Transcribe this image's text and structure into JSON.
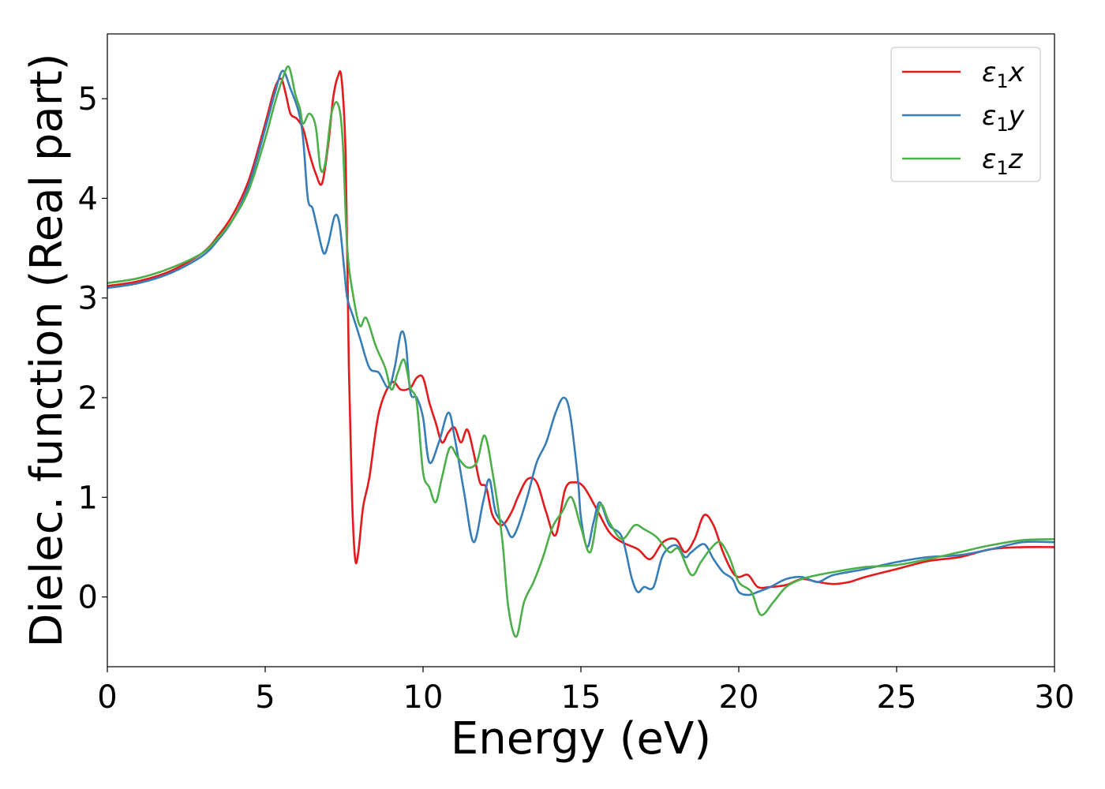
{
  "chart_data": {
    "type": "line",
    "xlabel": "Energy (eV)",
    "ylabel": "Dielec. function (Real part)",
    "xlim": [
      0,
      30
    ],
    "ylim": [
      -0.7,
      5.65
    ],
    "xticks": [
      0,
      5,
      10,
      15,
      20,
      25,
      30
    ],
    "yticks": [
      0,
      1,
      2,
      3,
      4,
      5
    ],
    "grid": false,
    "legend_position": "top-right",
    "series": [
      {
        "name_symbol": "ε",
        "name_sub": "1",
        "name_var": "x",
        "color": "#e41a1c",
        "x": [
          0,
          1,
          2,
          3,
          3.5,
          4,
          4.5,
          5,
          5.3,
          5.5,
          5.65,
          5.8,
          6.0,
          6.2,
          6.4,
          6.6,
          6.8,
          7.0,
          7.15,
          7.3,
          7.42,
          7.55,
          7.65,
          7.75,
          7.85,
          7.95,
          8.1,
          8.3,
          8.6,
          9.0,
          9.3,
          9.6,
          9.8,
          10.0,
          10.2,
          10.4,
          10.6,
          10.8,
          11.0,
          11.2,
          11.4,
          11.6,
          11.8,
          12.0,
          12.2,
          12.5,
          12.8,
          13.0,
          13.3,
          13.6,
          13.9,
          14.2,
          14.5,
          14.8,
          15.1,
          15.5,
          15.9,
          16.3,
          16.8,
          17.2,
          17.6,
          18.0,
          18.3,
          18.6,
          18.9,
          19.2,
          19.5,
          19.8,
          20.0,
          20.3,
          20.6,
          21.0,
          21.5,
          22.0,
          22.5,
          23.0,
          23.5,
          24.0,
          25.0,
          26.0,
          27.0,
          28.0,
          29.0,
          30.0
        ],
        "y": [
          3.12,
          3.17,
          3.27,
          3.45,
          3.62,
          3.85,
          4.2,
          4.75,
          5.1,
          5.2,
          5.05,
          4.85,
          4.8,
          4.7,
          4.45,
          4.25,
          4.15,
          4.55,
          5.0,
          5.22,
          5.2,
          4.4,
          2.3,
          1.0,
          0.38,
          0.45,
          0.9,
          1.2,
          1.85,
          2.15,
          2.08,
          2.1,
          2.2,
          2.2,
          1.95,
          1.75,
          1.55,
          1.65,
          1.7,
          1.55,
          1.68,
          1.45,
          1.15,
          1.1,
          0.82,
          0.72,
          0.85,
          1.0,
          1.18,
          1.15,
          0.85,
          0.62,
          1.08,
          1.15,
          1.1,
          0.88,
          0.65,
          0.55,
          0.48,
          0.38,
          0.55,
          0.58,
          0.45,
          0.58,
          0.82,
          0.72,
          0.45,
          0.25,
          0.2,
          0.22,
          0.1,
          0.1,
          0.12,
          0.18,
          0.15,
          0.13,
          0.15,
          0.2,
          0.28,
          0.36,
          0.4,
          0.48,
          0.5,
          0.5
        ]
      },
      {
        "name_symbol": "ε",
        "name_sub": "1",
        "name_var": "y",
        "color": "#377eb8",
        "x": [
          0,
          1,
          2,
          3,
          3.5,
          4,
          4.5,
          5,
          5.3,
          5.55,
          5.8,
          6.05,
          6.2,
          6.35,
          6.5,
          6.65,
          6.85,
          7.0,
          7.2,
          7.35,
          7.5,
          7.6,
          7.8,
          8.0,
          8.3,
          8.6,
          8.9,
          9.1,
          9.3,
          9.45,
          9.6,
          9.8,
          10.0,
          10.2,
          10.5,
          10.8,
          11.0,
          11.3,
          11.6,
          11.9,
          12.1,
          12.3,
          12.6,
          12.8,
          13.0,
          13.3,
          13.6,
          13.9,
          14.2,
          14.45,
          14.65,
          14.9,
          15.0,
          15.2,
          15.4,
          15.6,
          15.9,
          16.3,
          16.6,
          16.8,
          17.0,
          17.3,
          17.6,
          18.0,
          18.3,
          18.5,
          18.9,
          19.2,
          19.5,
          19.8,
          20.0,
          20.3,
          20.6,
          21.0,
          21.5,
          22.0,
          22.5,
          23.0,
          24.0,
          25.0,
          26.0,
          27.0,
          28.0,
          29.0,
          30.0
        ],
        "y": [
          3.1,
          3.15,
          3.25,
          3.42,
          3.58,
          3.8,
          4.15,
          4.7,
          5.05,
          5.28,
          5.1,
          4.88,
          4.6,
          4.0,
          3.9,
          3.7,
          3.45,
          3.55,
          3.82,
          3.75,
          3.3,
          3.0,
          2.8,
          2.6,
          2.3,
          2.25,
          2.1,
          2.3,
          2.65,
          2.55,
          2.05,
          2.0,
          1.8,
          1.35,
          1.55,
          1.85,
          1.6,
          1.05,
          0.55,
          0.95,
          1.18,
          0.85,
          0.72,
          0.6,
          0.7,
          1.0,
          1.35,
          1.55,
          1.85,
          2.0,
          1.85,
          1.2,
          0.8,
          0.5,
          0.75,
          0.95,
          0.72,
          0.6,
          0.2,
          0.05,
          0.1,
          0.1,
          0.42,
          0.52,
          0.4,
          0.45,
          0.53,
          0.38,
          0.25,
          0.18,
          0.05,
          0.02,
          0.05,
          0.1,
          0.18,
          0.2,
          0.15,
          0.22,
          0.28,
          0.35,
          0.4,
          0.42,
          0.48,
          0.55,
          0.55
        ]
      },
      {
        "name_symbol": "ε",
        "name_sub": "1",
        "name_var": "z",
        "color": "#4daf4a",
        "x": [
          0,
          1,
          2,
          3,
          3.5,
          4,
          4.5,
          5,
          5.3,
          5.55,
          5.75,
          5.95,
          6.1,
          6.2,
          6.4,
          6.6,
          6.75,
          6.9,
          7.1,
          7.3,
          7.45,
          7.6,
          7.8,
          8.0,
          8.2,
          8.5,
          8.8,
          9.0,
          9.2,
          9.4,
          9.6,
          9.8,
          10.0,
          10.2,
          10.4,
          10.6,
          10.85,
          11.1,
          11.4,
          11.7,
          11.95,
          12.2,
          12.5,
          12.7,
          12.95,
          13.2,
          13.5,
          13.8,
          14.1,
          14.4,
          14.7,
          15.0,
          15.3,
          15.6,
          15.9,
          16.3,
          16.7,
          17.0,
          17.4,
          17.8,
          18.1,
          18.5,
          18.8,
          19.1,
          19.4,
          19.7,
          20.0,
          20.4,
          20.7,
          21.1,
          21.5,
          22.0,
          22.5,
          23.0,
          24.0,
          25.0,
          26.0,
          27.0,
          28.0,
          29.0,
          30.0
        ],
        "y": [
          3.15,
          3.2,
          3.3,
          3.45,
          3.6,
          3.8,
          4.1,
          4.6,
          4.95,
          5.2,
          5.32,
          5.05,
          4.9,
          4.75,
          4.85,
          4.72,
          4.3,
          4.35,
          4.85,
          4.95,
          4.6,
          3.5,
          3.0,
          2.72,
          2.8,
          2.52,
          2.3,
          2.08,
          2.25,
          2.38,
          2.1,
          1.95,
          1.25,
          1.1,
          0.95,
          1.2,
          1.5,
          1.4,
          1.3,
          1.35,
          1.62,
          1.25,
          0.6,
          -0.1,
          -0.4,
          -0.05,
          0.15,
          0.4,
          0.7,
          0.85,
          1.0,
          0.7,
          0.45,
          0.92,
          0.75,
          0.58,
          0.72,
          0.68,
          0.6,
          0.45,
          0.48,
          0.22,
          0.35,
          0.48,
          0.55,
          0.4,
          0.15,
          0.05,
          -0.18,
          -0.05,
          0.1,
          0.18,
          0.22,
          0.25,
          0.3,
          0.32,
          0.38,
          0.45,
          0.52,
          0.57,
          0.58
        ]
      }
    ]
  }
}
